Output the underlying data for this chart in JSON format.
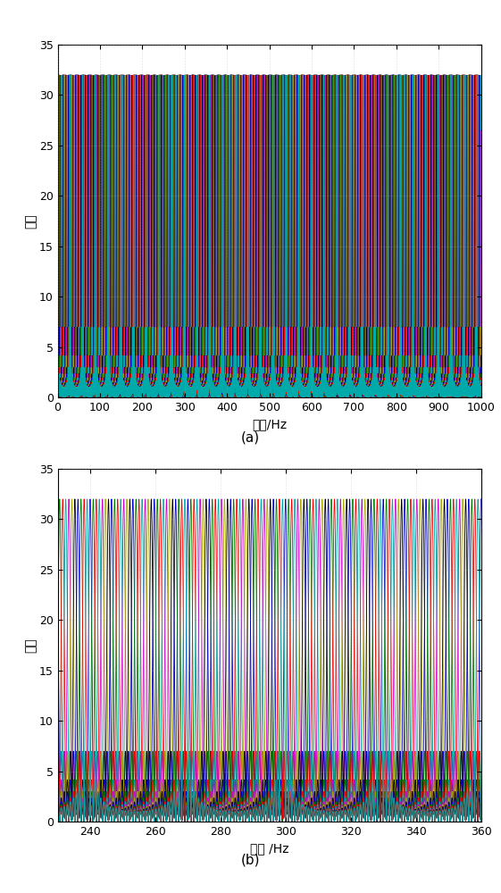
{
  "subplot_a": {
    "xlabel": "频率/Hz",
    "ylabel": "幅度",
    "label": "(a)",
    "xlim": [
      0,
      1000
    ],
    "ylim": [
      0,
      35
    ],
    "xticks": [
      0,
      100,
      200,
      300,
      400,
      500,
      600,
      700,
      800,
      900,
      1000
    ],
    "yticks": [
      0,
      5,
      10,
      15,
      20,
      25,
      30,
      35
    ]
  },
  "subplot_b": {
    "xlabel": "频率 /Hz",
    "ylabel": "幅度",
    "label": "(b)",
    "xlim": [
      230,
      360
    ],
    "ylim": [
      0,
      35
    ],
    "xticks": [
      240,
      260,
      280,
      300,
      320,
      340,
      360
    ],
    "yticks": [
      0,
      5,
      10,
      15,
      20,
      25,
      30,
      35
    ]
  },
  "N": 32,
  "f0": 30.0,
  "num_curves": 32,
  "background_color": "#ffffff",
  "colors_cycle": [
    "#000000",
    "#008000",
    "#ff00ff",
    "#0000ff",
    "#00ffff",
    "#ff0000"
  ],
  "line_width": 0.6
}
